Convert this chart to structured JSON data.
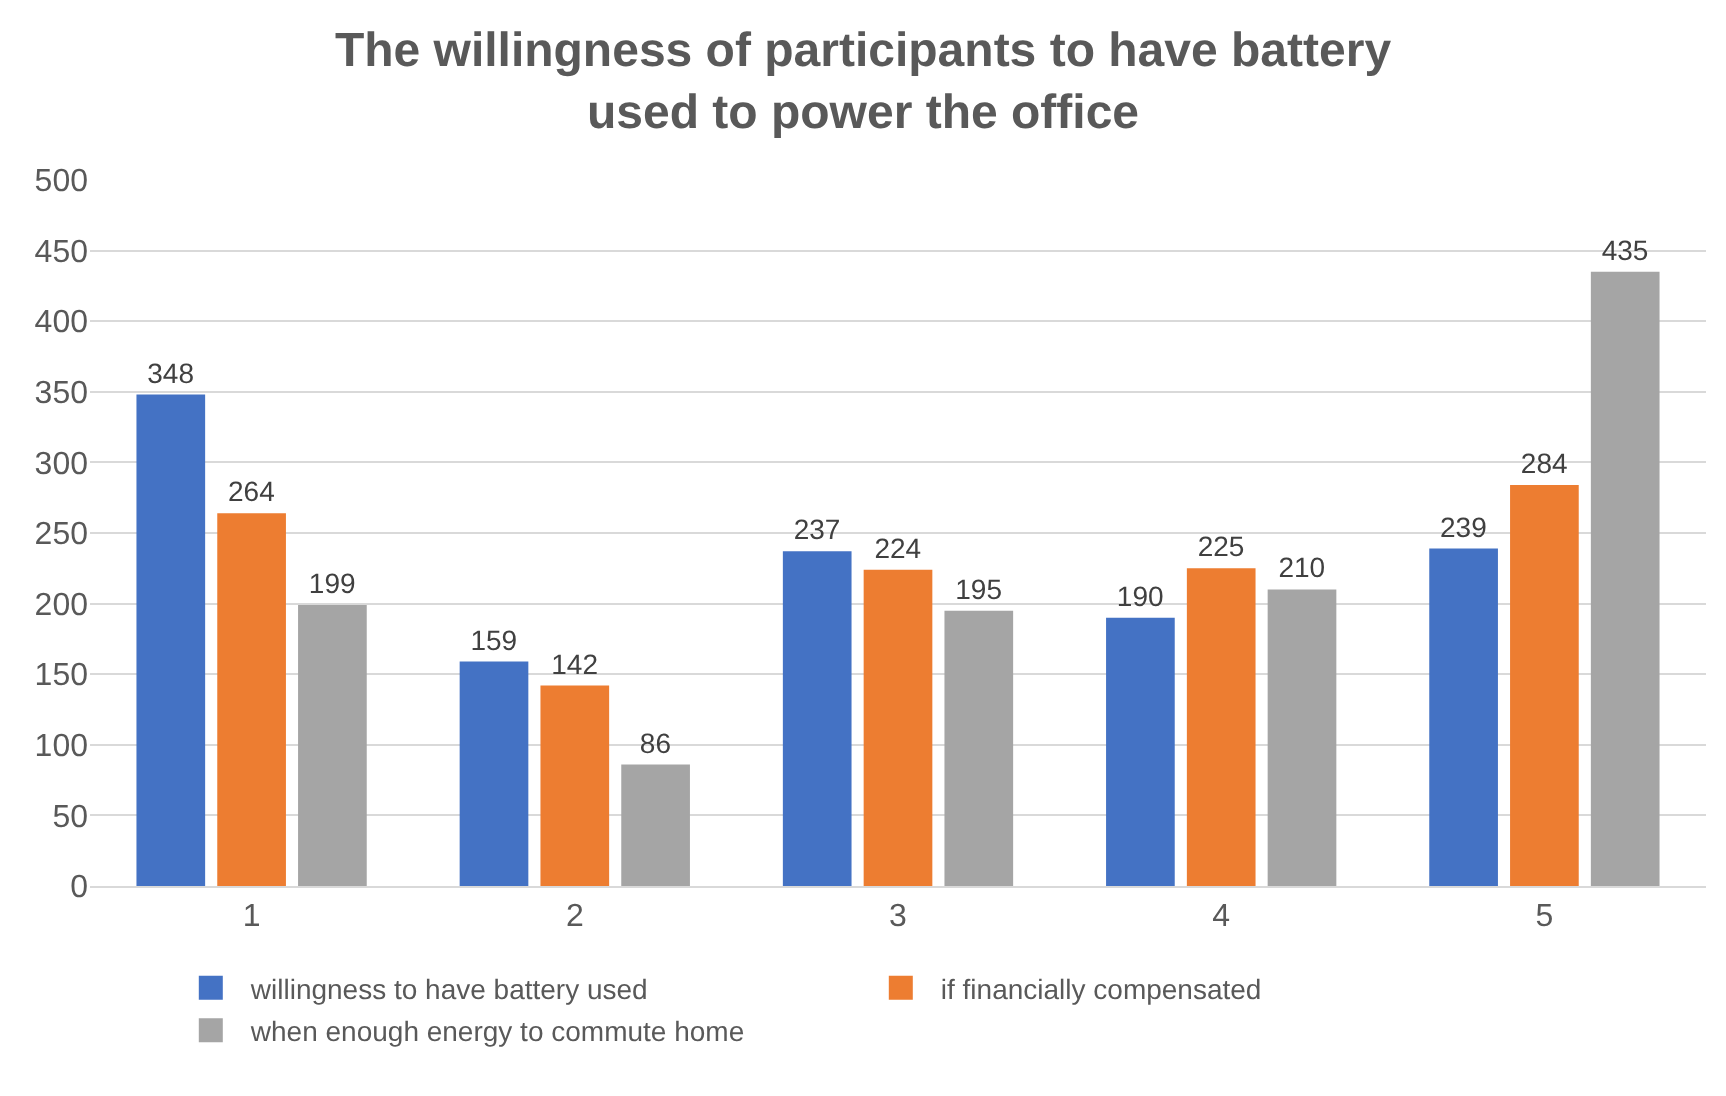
{
  "chart_data": {
    "type": "bar",
    "title": "The willingness of participants to have battery\nused to power the office",
    "categories": [
      "1",
      "2",
      "3",
      "4",
      "5"
    ],
    "series": [
      {
        "name": "willingness to have battery used",
        "color": "#4472c4",
        "values": [
          348,
          159,
          237,
          190,
          239
        ]
      },
      {
        "name": "if financially compensated",
        "color": "#ed7d31",
        "values": [
          264,
          142,
          224,
          225,
          284
        ]
      },
      {
        "name": "when enough energy to commute home",
        "color": "#a5a5a5",
        "values": [
          199,
          86,
          195,
          210,
          435
        ]
      }
    ],
    "ylim": [
      0,
      500
    ],
    "yticks": [
      0,
      50,
      100,
      150,
      200,
      250,
      300,
      350,
      400,
      450,
      500
    ],
    "grid": "y",
    "legend": "bottom",
    "data_labels": true
  }
}
